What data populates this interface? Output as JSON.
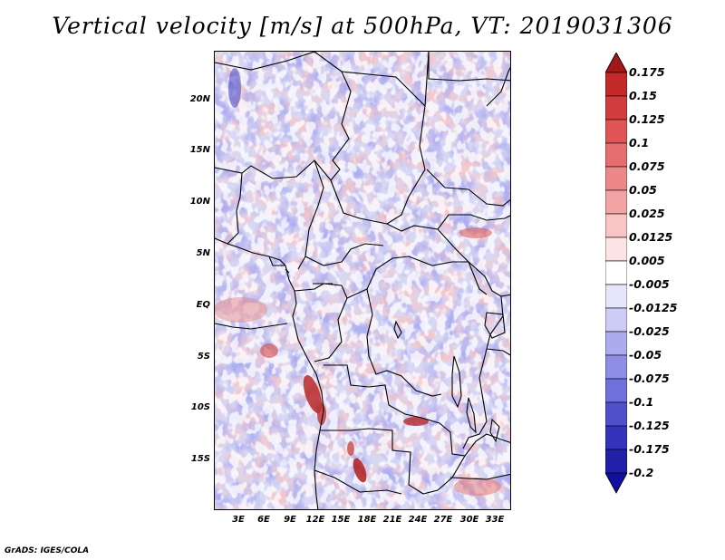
{
  "title": "Vertical velocity [m/s] at 500hPa, VT: 2019031306",
  "footer": "GrADS: IGES/COLA",
  "map": {
    "lat_labels": [
      "20N",
      "15N",
      "10N",
      "5N",
      "EQ",
      "5S",
      "10S",
      "15S"
    ],
    "lon_labels": [
      "3E",
      "6E",
      "9E",
      "12E",
      "15E",
      "18E",
      "21E",
      "24E",
      "27E",
      "30E",
      "33E"
    ]
  },
  "colorbar": {
    "labels": [
      "0.175",
      "0.15",
      "0.125",
      "0.1",
      "0.075",
      "0.05",
      "0.025",
      "0.0125",
      "0.005",
      "-0.005",
      "-0.0125",
      "-0.025",
      "-0.05",
      "-0.075",
      "-0.1",
      "-0.125",
      "-0.175",
      "-0.2"
    ],
    "colors": [
      "#b01c1c",
      "#c42a2a",
      "#d23e3e",
      "#e05656",
      "#e66e6e",
      "#ec8888",
      "#f2a4a4",
      "#f8c4c4",
      "#fce4e4",
      "#ffffff",
      "#e6e6fa",
      "#ccccf4",
      "#ababee",
      "#8e8ee6",
      "#7070dc",
      "#5050cc",
      "#3333bb",
      "#2020a8",
      "#1818a0",
      "#1010a0"
    ],
    "top_cap_color": "#a01818",
    "bottom_cap_color": "#1010a0"
  },
  "palette": {
    "strong_red": "#c23030",
    "light_red": "#f2b0b0",
    "light_blue": "#c8c8f2",
    "medium_blue": "#8a8ae4",
    "land_lines": "#000000"
  }
}
